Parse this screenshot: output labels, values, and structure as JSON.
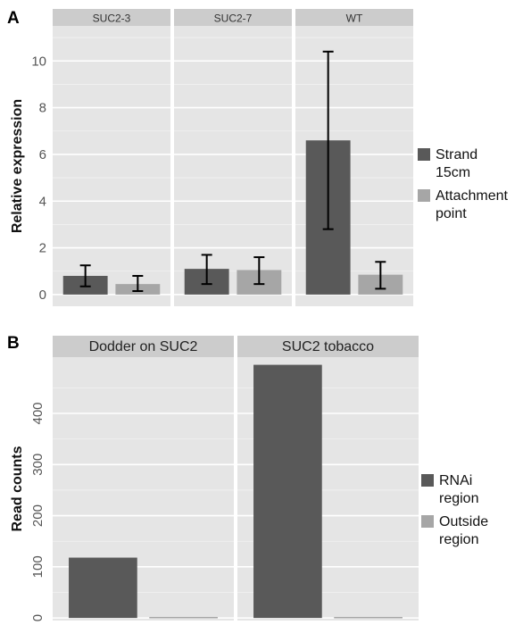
{
  "colors": {
    "dark": "#595959",
    "light": "#a6a6a6"
  },
  "chart_data": [
    {
      "type": "bar",
      "panel_label": "A",
      "ylabel": "Relative expression",
      "facets": [
        "SUC2-3",
        "SUC2-7",
        "WT"
      ],
      "series": [
        {
          "name": "Strand 15cm",
          "legend_lines": [
            "Strand",
            "15cm"
          ],
          "values": [
            0.8,
            1.1,
            6.6
          ],
          "err_low": [
            0.35,
            0.45,
            2.8
          ],
          "err_high": [
            1.25,
            1.7,
            10.4
          ]
        },
        {
          "name": "Attachment point",
          "legend_lines": [
            "Attachment",
            "point"
          ],
          "values": [
            0.45,
            1.05,
            0.85
          ],
          "err_low": [
            0.15,
            0.45,
            0.25
          ],
          "err_high": [
            0.8,
            1.6,
            1.4
          ]
        }
      ],
      "ylim": [
        -0.5,
        11.5
      ],
      "yticks": [
        0,
        2,
        4,
        6,
        8,
        10
      ],
      "grid": true,
      "legend_position": "right"
    },
    {
      "type": "bar",
      "panel_label": "B",
      "ylabel": "Read counts",
      "facets": [
        "Dodder on SUC2",
        "SUC2 tobacco"
      ],
      "series": [
        {
          "name": "RNAi region",
          "legend_lines": [
            "RNAi",
            "region"
          ],
          "values": [
            118,
            495
          ]
        },
        {
          "name": "Outside region",
          "legend_lines": [
            "Outside",
            "region"
          ],
          "values": [
            2,
            2
          ]
        }
      ],
      "ylim": [
        -5,
        510
      ],
      "yticks": [
        0,
        100,
        200,
        300,
        400
      ],
      "grid": true,
      "legend_position": "right"
    }
  ]
}
